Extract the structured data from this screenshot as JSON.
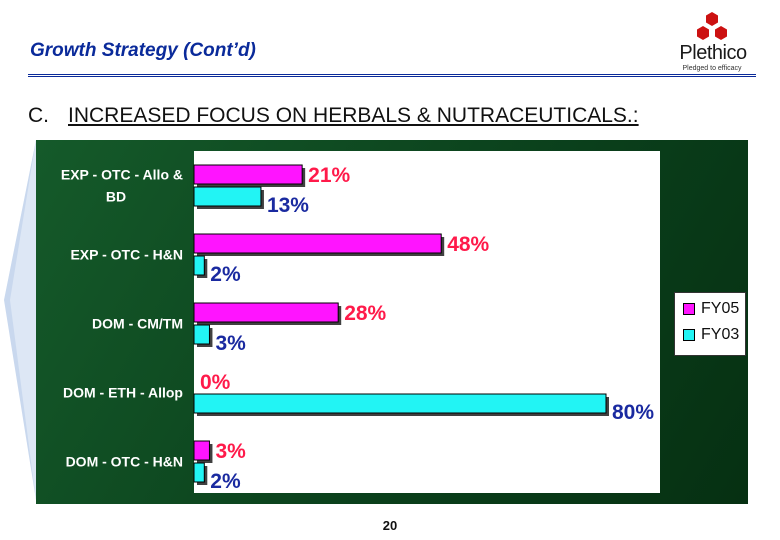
{
  "slide": {
    "title": "Growth Strategy (Cont’d)",
    "section_letter": "C.",
    "section_heading": "INCREASED FOCUS ON HERBALS & NUTRACEUTICALS.:",
    "page_number": "20"
  },
  "logo": {
    "wordmark": "Plethico",
    "tagline": "Pledged to efficacy",
    "color": "#cc1111"
  },
  "chart_data": {
    "type": "bar",
    "orientation": "horizontal",
    "categories": [
      "EXP - OTC - Allo & BD",
      "EXP - OTC - H&N",
      "DOM - CM/TM",
      "DOM - ETH - Allop",
      "DOM - OTC - H&N"
    ],
    "category_lines": [
      [
        "EXP - OTC - Allo &",
        "BD"
      ],
      [
        "EXP - OTC - H&N"
      ],
      [
        "DOM - CM/TM"
      ],
      [
        "DOM - ETH - Allop"
      ],
      [
        "DOM - OTC - H&N"
      ]
    ],
    "series": [
      {
        "name": "FY05",
        "values": [
          21,
          48,
          28,
          0,
          3
        ],
        "labels": [
          "21%",
          "48%",
          "28%",
          "0%",
          "3%"
        ],
        "color": "#ff14ff",
        "label_color": "#ff1a4a"
      },
      {
        "name": "FY03",
        "values": [
          13,
          2,
          3,
          80,
          2
        ],
        "labels": [
          "13%",
          "2%",
          "3%",
          "80%",
          "2%"
        ],
        "color": "#22f4f4",
        "label_color": "#1a2aa0"
      }
    ],
    "xlim": [
      0,
      80
    ],
    "legend_position": "right",
    "grid": false,
    "category_label_color": "#ffffff"
  }
}
